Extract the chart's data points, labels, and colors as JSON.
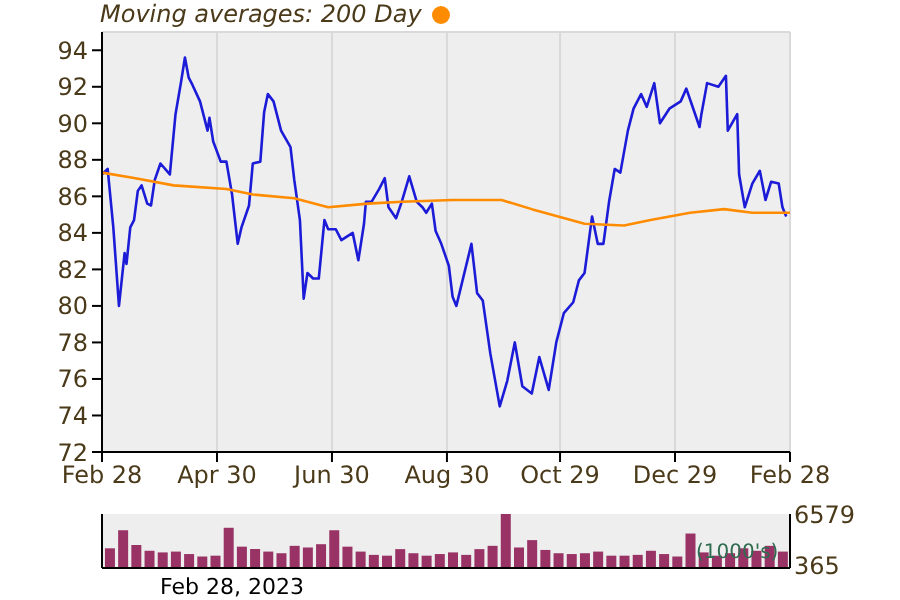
{
  "chart_data": [
    {
      "type": "line",
      "legend": "top left",
      "grid": true,
      "marker": "none",
      "line_style": "solid",
      "xlim": [
        "2022-02-28",
        "2023-02-28"
      ],
      "xticks": [
        {
          "value": "2022-02-28",
          "label": "Feb 28"
        },
        {
          "value": "2022-04-30",
          "label": "Apr 30"
        },
        {
          "value": "2022-06-30",
          "label": "Jun 30"
        },
        {
          "value": "2022-08-30",
          "label": "Aug 30"
        },
        {
          "value": "2022-10-29",
          "label": "Oct 29"
        },
        {
          "value": "2022-12-29",
          "label": "Dec 29"
        },
        {
          "value": "2023-02-28",
          "label": "Feb 28"
        }
      ],
      "ylim": [
        72,
        95
      ],
      "yticks": [
        72,
        74,
        76,
        78,
        80,
        82,
        84,
        86,
        88,
        90,
        92,
        94
      ],
      "series": [
        {
          "color": "#1c1cd8",
          "x": [
            "2022-02-28",
            "2022-03-03",
            "2022-03-06",
            "2022-03-09",
            "2022-03-12",
            "2022-03-13",
            "2022-03-15",
            "2022-03-17",
            "2022-03-19",
            "2022-03-21",
            "2022-03-24",
            "2022-03-26",
            "2022-03-28",
            "2022-03-31",
            "2022-04-05",
            "2022-04-08",
            "2022-04-11",
            "2022-04-13",
            "2022-04-15",
            "2022-04-17",
            "2022-04-21",
            "2022-04-25",
            "2022-04-26",
            "2022-04-28",
            "2022-05-02",
            "2022-05-05",
            "2022-05-08",
            "2022-05-11",
            "2022-05-13",
            "2022-05-17",
            "2022-05-19",
            "2022-05-23",
            "2022-05-25",
            "2022-05-27",
            "2022-05-30",
            "2022-06-03",
            "2022-06-08",
            "2022-06-10",
            "2022-06-13",
            "2022-06-15",
            "2022-06-17",
            "2022-06-20",
            "2022-06-23",
            "2022-06-26",
            "2022-06-28",
            "2022-07-02",
            "2022-07-05",
            "2022-07-11",
            "2022-07-14",
            "2022-07-17",
            "2022-07-18",
            "2022-07-21",
            "2022-07-25",
            "2022-07-28",
            "2022-07-30",
            "2022-08-03",
            "2022-08-06",
            "2022-08-10",
            "2022-08-14",
            "2022-08-17",
            "2022-08-19",
            "2022-08-22",
            "2022-08-24",
            "2022-08-27",
            "2022-08-31",
            "2022-09-02",
            "2022-09-04",
            "2022-09-12",
            "2022-09-15",
            "2022-09-18",
            "2022-09-22",
            "2022-09-27",
            "2022-10-01",
            "2022-10-05",
            "2022-10-09",
            "2022-10-14",
            "2022-10-18",
            "2022-10-23",
            "2022-10-27",
            "2022-10-31",
            "2022-11-05",
            "2022-11-08",
            "2022-11-11",
            "2022-11-15",
            "2022-11-18",
            "2022-11-21",
            "2022-11-24",
            "2022-11-27",
            "2022-11-30",
            "2022-12-04",
            "2022-12-07",
            "2022-12-11",
            "2022-12-14",
            "2022-12-18",
            "2022-12-21",
            "2022-12-26",
            "2023-01-01",
            "2023-01-04",
            "2023-01-08",
            "2023-01-11",
            "2023-01-12",
            "2023-01-15",
            "2023-01-21",
            "2023-01-25",
            "2023-01-26",
            "2023-01-31",
            "2023-02-01",
            "2023-02-04",
            "2023-02-08",
            "2023-02-12",
            "2023-02-15",
            "2023-02-18",
            "2023-02-22",
            "2023-02-24",
            "2023-02-26"
          ],
          "values": [
            87.2,
            87.5,
            84.3,
            80.0,
            82.9,
            82.3,
            84.3,
            84.7,
            86.3,
            86.6,
            85.6,
            85.5,
            86.9,
            87.8,
            87.2,
            90.5,
            92.3,
            93.6,
            92.5,
            92.1,
            91.2,
            89.6,
            90.3,
            89.0,
            87.9,
            87.9,
            86.1,
            83.4,
            84.3,
            85.5,
            87.8,
            87.9,
            90.6,
            91.6,
            91.2,
            89.6,
            88.7,
            86.9,
            84.7,
            80.4,
            81.8,
            81.5,
            81.5,
            84.7,
            84.2,
            84.2,
            83.6,
            84.0,
            82.5,
            84.5,
            85.7,
            85.7,
            86.4,
            87.0,
            85.4,
            84.8,
            85.7,
            87.1,
            85.7,
            85.4,
            85.1,
            85.6,
            84.1,
            83.4,
            82.2,
            80.5,
            80.0,
            83.4,
            80.7,
            80.3,
            77.4,
            74.5,
            75.9,
            78.0,
            75.6,
            75.2,
            77.2,
            75.4,
            78.0,
            79.6,
            80.2,
            81.4,
            81.8,
            84.9,
            83.4,
            83.4,
            85.7,
            87.5,
            87.3,
            89.6,
            90.8,
            91.6,
            90.9,
            92.2,
            90.0,
            90.8,
            91.2,
            91.9,
            90.7,
            89.8,
            90.5,
            92.2,
            92.0,
            92.6,
            89.6,
            90.5,
            87.2,
            85.4,
            86.7,
            87.4,
            85.8,
            86.8,
            86.7,
            85.4,
            84.9
          ]
        },
        {
          "name": "Moving averages: 200 Day",
          "color": "#ff8c00",
          "x": [
            "2022-02-28",
            "2022-03-17",
            "2022-04-07",
            "2022-05-05",
            "2022-05-19",
            "2022-06-10",
            "2022-06-28",
            "2022-07-19",
            "2022-08-06",
            "2022-09-02",
            "2022-09-28",
            "2022-10-14",
            "2022-11-11",
            "2022-12-02",
            "2022-12-16",
            "2023-01-06",
            "2023-01-24",
            "2023-02-08",
            "2023-02-28"
          ],
          "values": [
            87.3,
            87.0,
            86.6,
            86.4,
            86.1,
            85.9,
            85.4,
            85.6,
            85.7,
            85.8,
            85.8,
            85.3,
            84.5,
            84.4,
            84.7,
            85.1,
            85.3,
            85.1,
            85.1
          ]
        }
      ]
    },
    {
      "type": "bar",
      "tick_labels": "y",
      "grid": "x",
      "xlim": [
        "2022-02-28",
        "2023-02-28"
      ],
      "ylim": [
        0,
        6579
      ],
      "yticks": [
        365,
        6579
      ],
      "annotations": [
        "(1000's)",
        "Feb 28, 2023"
      ],
      "series": [
        {
          "color": "#993366",
          "x": [
            "2022-03-04",
            "2022-03-11",
            "2022-03-18",
            "2022-03-25",
            "2022-04-01",
            "2022-04-08",
            "2022-04-15",
            "2022-04-22",
            "2022-04-29",
            "2022-05-06",
            "2022-05-13",
            "2022-05-20",
            "2022-05-27",
            "2022-06-03",
            "2022-06-10",
            "2022-06-17",
            "2022-06-24",
            "2022-07-01",
            "2022-07-08",
            "2022-07-15",
            "2022-07-22",
            "2022-07-29",
            "2022-08-05",
            "2022-08-12",
            "2022-08-19",
            "2022-08-26",
            "2022-09-02",
            "2022-09-09",
            "2022-09-16",
            "2022-09-23",
            "2022-09-30",
            "2022-10-07",
            "2022-10-14",
            "2022-10-21",
            "2022-10-28",
            "2022-11-04",
            "2022-11-11",
            "2022-11-18",
            "2022-11-25",
            "2022-12-02",
            "2022-12-09",
            "2022-12-16",
            "2022-12-23",
            "2022-12-30",
            "2023-01-06",
            "2023-01-13",
            "2023-01-20",
            "2023-01-27",
            "2023-02-03",
            "2023-02-10",
            "2023-02-17",
            "2023-02-24"
          ],
          "values": [
            2400,
            4600,
            2800,
            2100,
            1900,
            2000,
            1700,
            1400,
            1500,
            4900,
            2600,
            2300,
            2000,
            1800,
            2700,
            2500,
            2900,
            4600,
            2600,
            2000,
            1600,
            1500,
            2300,
            1800,
            1500,
            1700,
            1900,
            1600,
            2300,
            2700,
            6579,
            2500,
            3400,
            2200,
            1800,
            1700,
            1800,
            2000,
            1500,
            1500,
            1600,
            2100,
            1700,
            1400,
            4200,
            1900,
            1500,
            1800,
            2400,
            2100,
            2700,
            2000
          ]
        }
      ]
    }
  ]
}
